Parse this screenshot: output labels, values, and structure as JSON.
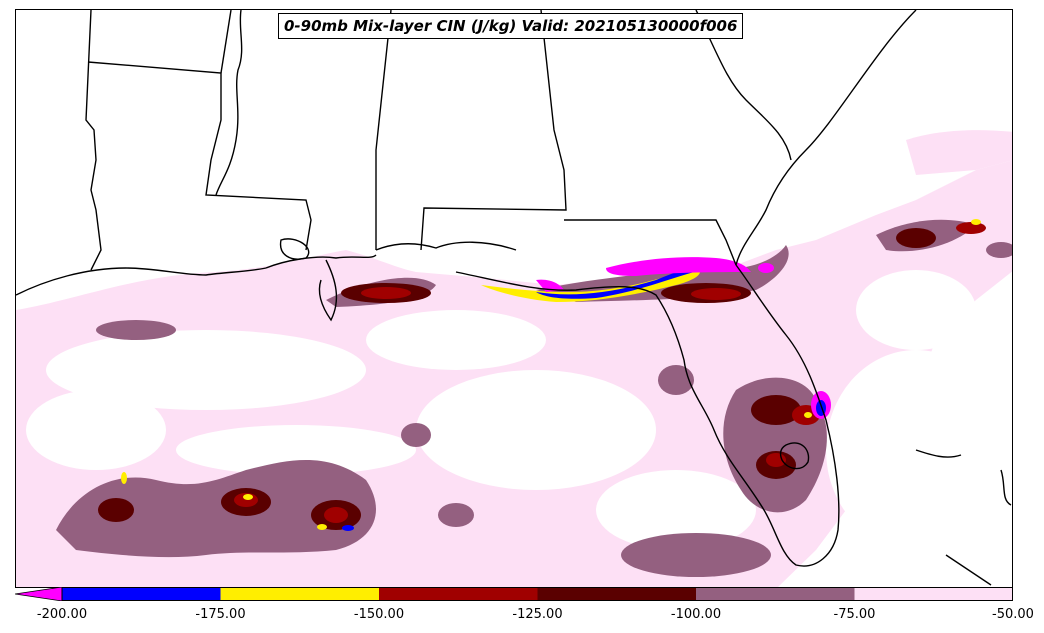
{
  "title": "0-90mb Mix-layer CIN (J/kg) Valid: 202105130000f006",
  "colorbar": {
    "colors": [
      "#ff00ff",
      "#0000ff",
      "#ffee00",
      "#a00000",
      "#5a0000",
      "#946080",
      "#fde0f5"
    ],
    "tick_labels": [
      "-200.00",
      "-175.00",
      "-150.00",
      "-125.00",
      "-100.00",
      "-75.00",
      "-50.00"
    ],
    "tick_values": [
      -200,
      -175,
      -150,
      -125,
      -100,
      -75,
      -50
    ],
    "extend": "min"
  },
  "map": {
    "region": "Gulf of Mexico / US Southeast",
    "land_color": "#ffffff",
    "boundary_color": "#000000"
  }
}
